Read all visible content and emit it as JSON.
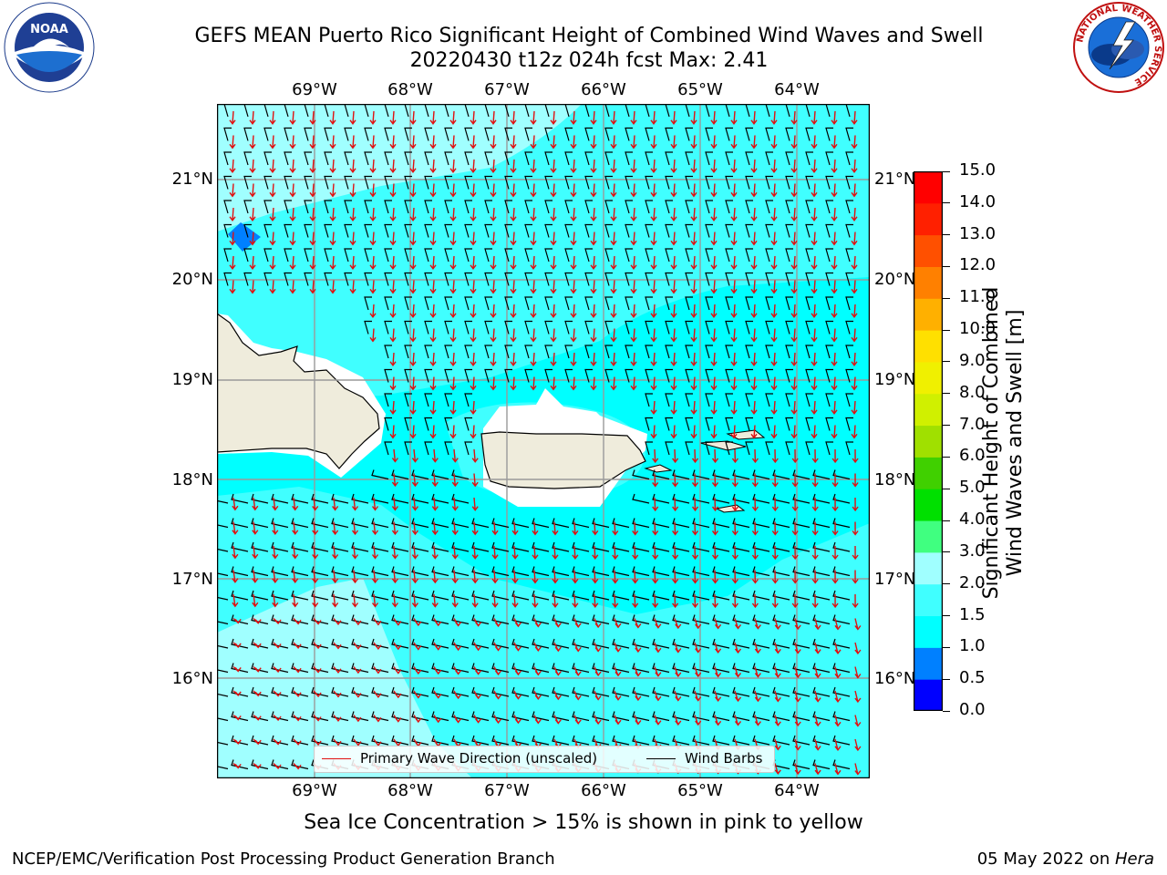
{
  "header": {
    "title_line1": "GEFS MEAN Puerto Rico Significant Height of Combined Wind Waves and Swell",
    "title_line2": "20220430 t12z 024h fcst   Max: 2.41"
  },
  "logos": {
    "left": {
      "text": "NOAA",
      "ring_text": "NATIONAL OCEANIC AND ATMOSPHERIC ADMINISTRATION · U.S. DEPARTMENT OF COMMERCE"
    },
    "right": {
      "ring_text": "NATIONAL WEATHER SERVICE"
    }
  },
  "map": {
    "lon_labels": [
      "69°W",
      "68°W",
      "67°W",
      "66°W",
      "65°W",
      "64°W"
    ],
    "lat_labels": [
      "21°N",
      "20°N",
      "19°N",
      "18°N",
      "17°N",
      "16°N"
    ],
    "legend": {
      "wave_label": "Primary Wave Direction (unscaled)",
      "barb_label": "Wind Barbs",
      "wave_color": "#e01010",
      "barb_color": "#000000"
    },
    "land_color": "#efecdc",
    "ocean_color": "#00ffff"
  },
  "colorbar": {
    "label": "Significant Height of Combined Wind Waves and Swell [m]",
    "ticks": [
      "0.0",
      "0.5",
      "1.0",
      "1.5",
      "2.0",
      "3.0",
      "4.0",
      "5.0",
      "6.0",
      "7.0",
      "8.0",
      "9.0",
      "10.0",
      "11.0",
      "12.0",
      "13.0",
      "14.0",
      "15.0"
    ],
    "colors": [
      "#0000ff",
      "#0080ff",
      "#00ffff",
      "#40ffff",
      "#a0ffff",
      "#40ff80",
      "#00e000",
      "#40d000",
      "#a0e000",
      "#d0f000",
      "#f0f000",
      "#ffe000",
      "#ffb000",
      "#ff8000",
      "#ff5000",
      "#ff2000",
      "#ff0000"
    ]
  },
  "subtitle": "Sea Ice Concentration > 15% is shown in pink to yellow",
  "footer": {
    "left": "NCEP/EMC/Verification Post Processing Product Generation Branch",
    "right_date": "05 May 2022 on ",
    "right_host": "Hera"
  }
}
